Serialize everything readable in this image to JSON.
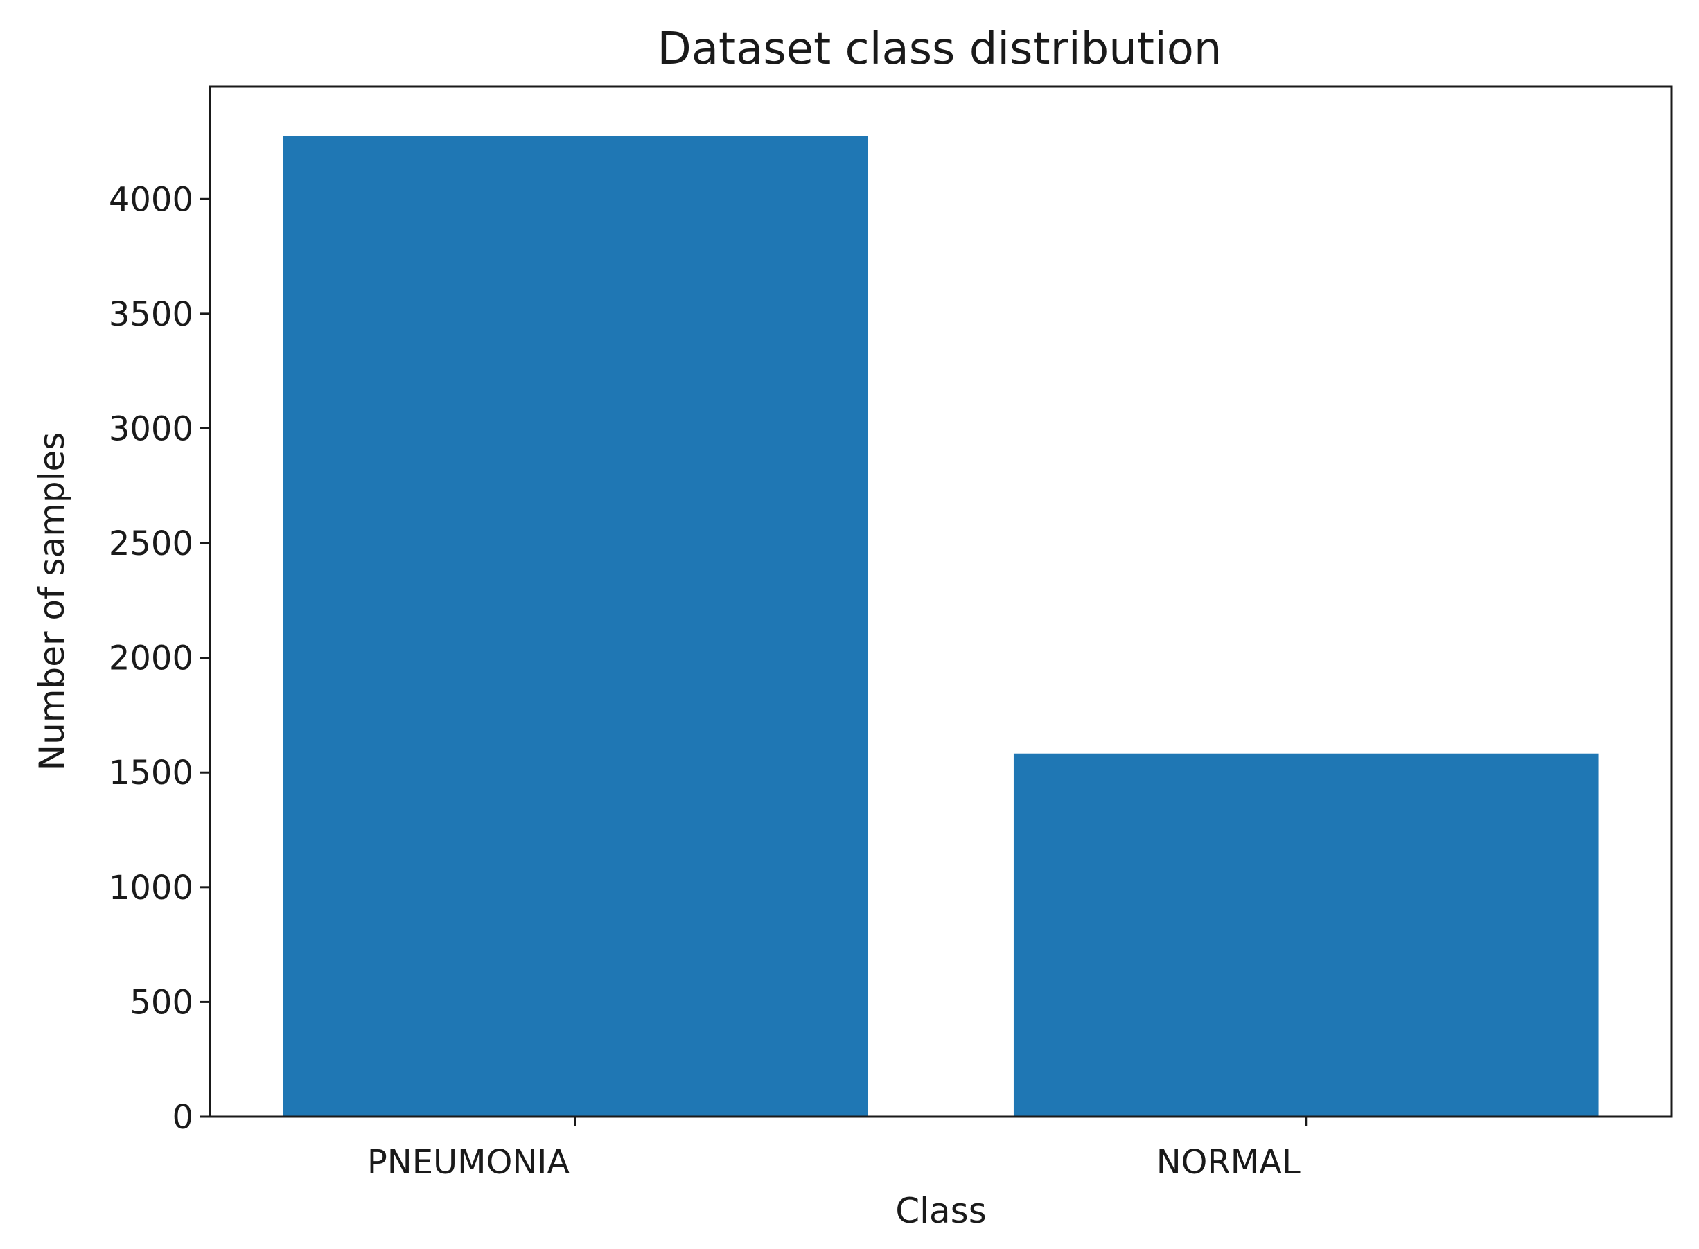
{
  "chart_data": {
    "type": "bar",
    "title": "Dataset class distribution",
    "xlabel": "Class",
    "ylabel": "Number of samples",
    "categories": [
      "PNEUMONIA",
      "NORMAL"
    ],
    "values": [
      4273,
      1583
    ],
    "ylim": [
      0,
      4490
    ],
    "yticks": [
      0,
      500,
      1000,
      1500,
      2000,
      2500,
      3000,
      3500,
      4000
    ],
    "bar_color": "#1f77b4",
    "grid": false,
    "legend": null
  }
}
